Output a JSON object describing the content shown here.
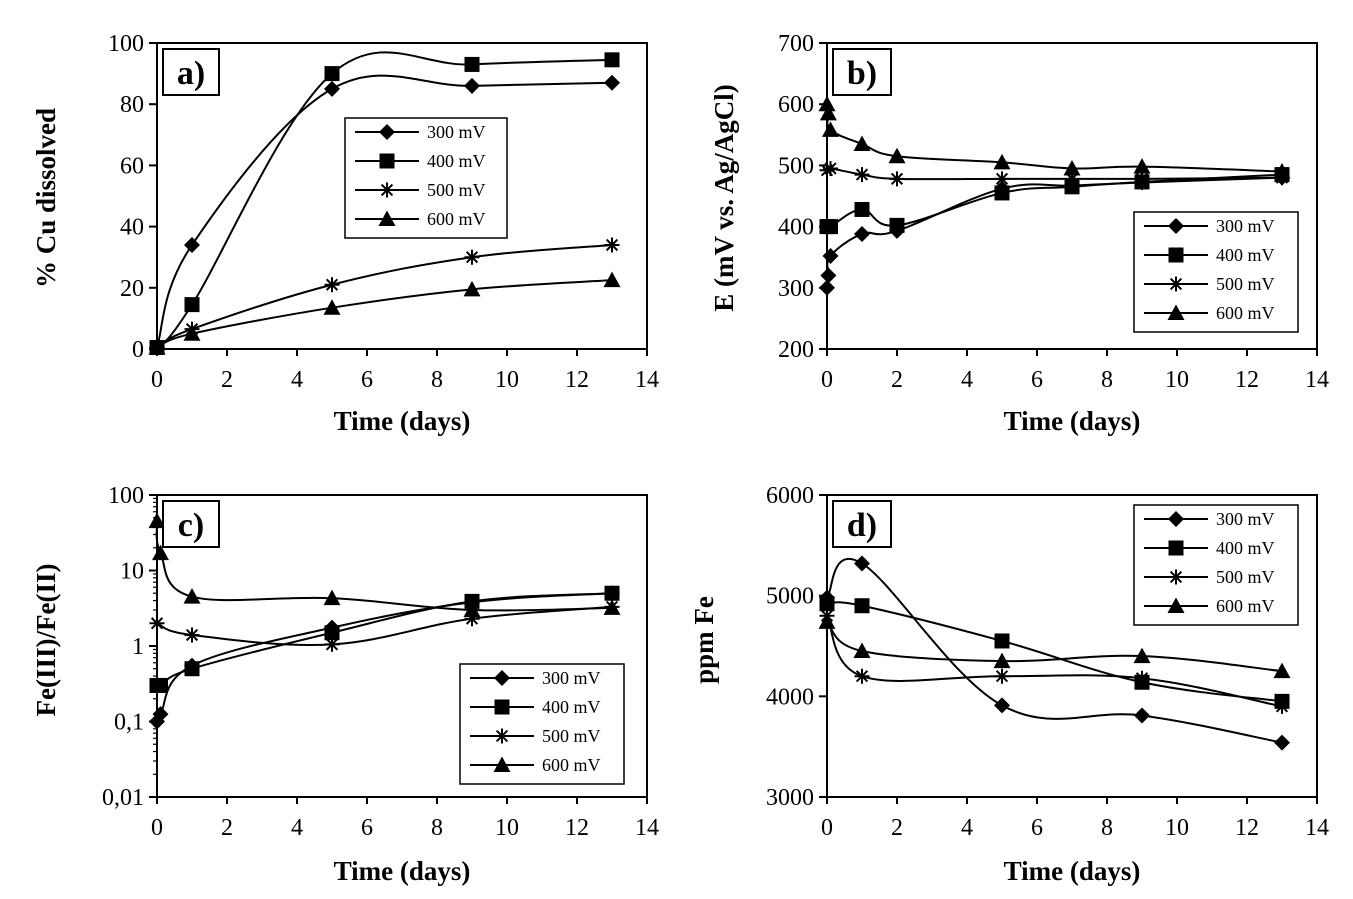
{
  "chart_data": [
    {
      "id": "a",
      "type": "line",
      "panel_label": "a)",
      "xlabel": "Time (days)",
      "ylabel": "% Cu dissolved",
      "scale": "linear",
      "xlim": [
        0,
        14
      ],
      "ylim": [
        0,
        100
      ],
      "xticks": [
        0,
        2,
        4,
        6,
        8,
        10,
        12,
        14
      ],
      "yticks": [
        0,
        20,
        40,
        60,
        80,
        100
      ],
      "xtick_labels": [
        "0",
        "2",
        "4",
        "6",
        "8",
        "10",
        "12",
        "14"
      ],
      "ytick_labels": [
        "0",
        "20",
        "40",
        "60",
        "80",
        "100"
      ],
      "legend_position": "center-right",
      "series": [
        {
          "name": "300 mV",
          "marker": "diamond",
          "x": [
            0,
            1,
            5,
            9,
            13
          ],
          "y": [
            0.5,
            34,
            85,
            86,
            87
          ]
        },
        {
          "name": "400 mV",
          "marker": "square",
          "x": [
            0,
            1,
            5,
            9,
            13
          ],
          "y": [
            0.5,
            14.5,
            90,
            93,
            94.5
          ]
        },
        {
          "name": "500 mV",
          "marker": "star",
          "x": [
            0,
            1,
            5,
            9,
            13
          ],
          "y": [
            0.5,
            6.5,
            21,
            30,
            34
          ]
        },
        {
          "name": "600 mV",
          "marker": "triangle",
          "x": [
            0,
            1,
            5,
            9,
            13
          ],
          "y": [
            0.5,
            5,
            13.5,
            19.5,
            22.5
          ]
        }
      ]
    },
    {
      "id": "b",
      "type": "line",
      "panel_label": "b)",
      "xlabel": "Time (days)",
      "ylabel": "E (mV vs. Ag/AgCl)",
      "scale": "linear",
      "xlim": [
        0,
        14
      ],
      "ylim": [
        200,
        700
      ],
      "xticks": [
        0,
        2,
        4,
        6,
        8,
        10,
        12,
        14
      ],
      "yticks": [
        200,
        300,
        400,
        500,
        600,
        700
      ],
      "xtick_labels": [
        "0",
        "2",
        "4",
        "6",
        "8",
        "10",
        "12",
        "14"
      ],
      "ytick_labels": [
        "200",
        "300",
        "400",
        "500",
        "600",
        "700"
      ],
      "legend_position": "bottom-right",
      "series": [
        {
          "name": "300 mV",
          "marker": "diamond",
          "x": [
            0,
            0.04,
            0.1,
            1,
            2,
            5,
            7,
            9,
            13
          ],
          "y": [
            300,
            320,
            352,
            388,
            393,
            462,
            467,
            472,
            480
          ]
        },
        {
          "name": "400 mV",
          "marker": "square",
          "x": [
            0,
            0.1,
            1,
            2,
            5,
            7,
            9,
            13
          ],
          "y": [
            400,
            400,
            428,
            402,
            455,
            465,
            473,
            485
          ]
        },
        {
          "name": "500 mV",
          "marker": "star",
          "x": [
            0,
            0.1,
            1,
            2,
            5,
            7,
            9,
            13
          ],
          "y": [
            492,
            495,
            485,
            478,
            478,
            478,
            478,
            480
          ]
        },
        {
          "name": "600 mV",
          "marker": "triangle",
          "x": [
            0,
            0.04,
            0.1,
            1,
            2,
            5,
            7,
            9,
            13
          ],
          "y": [
            600,
            585,
            558,
            535,
            515,
            505,
            495,
            498,
            490
          ]
        }
      ]
    },
    {
      "id": "c",
      "type": "line",
      "panel_label": "c)",
      "xlabel": "Time (days)",
      "ylabel": "Fe(III)/Fe(II)",
      "scale": "log",
      "xlim": [
        0,
        14
      ],
      "ylim": [
        0.01,
        100
      ],
      "xticks": [
        0,
        2,
        4,
        6,
        8,
        10,
        12,
        14
      ],
      "yticks": [
        0.01,
        0.1,
        1,
        10,
        100
      ],
      "xtick_labels": [
        "0",
        "2",
        "4",
        "6",
        "8",
        "10",
        "12",
        "14"
      ],
      "ytick_labels": [
        "0,01",
        "0,1",
        "1",
        "10",
        "100"
      ],
      "legend_position": "bottom-right",
      "series": [
        {
          "name": "300 mV",
          "marker": "diamond",
          "x": [
            0,
            0.1,
            1,
            5,
            9,
            13
          ],
          "y": [
            0.1,
            0.125,
            0.55,
            1.75,
            3.8,
            5.0
          ]
        },
        {
          "name": "400 mV",
          "marker": "square",
          "x": [
            0,
            0.1,
            1,
            5,
            9,
            13
          ],
          "y": [
            0.3,
            0.3,
            0.5,
            1.5,
            3.9,
            5.0
          ]
        },
        {
          "name": "500 mV",
          "marker": "star",
          "x": [
            0,
            1,
            5,
            9,
            13
          ],
          "y": [
            2.0,
            1.4,
            1.05,
            2.3,
            3.3
          ]
        },
        {
          "name": "600 mV",
          "marker": "triangle",
          "x": [
            0,
            0.1,
            1,
            5,
            9,
            13
          ],
          "y": [
            45,
            17,
            4.5,
            4.3,
            3.0,
            3.2
          ]
        }
      ]
    },
    {
      "id": "d",
      "type": "line",
      "panel_label": "d)",
      "xlabel": "Time (days)",
      "ylabel": "ppm Fe",
      "scale": "linear",
      "xlim": [
        0,
        14
      ],
      "ylim": [
        3000,
        6000
      ],
      "xticks": [
        0,
        2,
        4,
        6,
        8,
        10,
        12,
        14
      ],
      "yticks": [
        3000,
        4000,
        5000,
        6000
      ],
      "xtick_labels": [
        "0",
        "2",
        "4",
        "6",
        "8",
        "10",
        "12",
        "14"
      ],
      "ytick_labels": [
        "3000",
        "4000",
        "5000",
        "6000"
      ],
      "legend_position": "top-right",
      "series": [
        {
          "name": "300 mV",
          "marker": "diamond",
          "x": [
            0,
            1,
            5,
            9,
            13
          ],
          "y": [
            4980,
            5320,
            3910,
            3810,
            3540
          ]
        },
        {
          "name": "400 mV",
          "marker": "square",
          "x": [
            0,
            1,
            5,
            9,
            13
          ],
          "y": [
            4920,
            4900,
            4550,
            4140,
            3950
          ]
        },
        {
          "name": "500 mV",
          "marker": "star",
          "x": [
            0,
            1,
            5,
            9,
            13
          ],
          "y": [
            4800,
            4200,
            4200,
            4180,
            3900
          ]
        },
        {
          "name": "600 mV",
          "marker": "triangle",
          "x": [
            0,
            1,
            5,
            9,
            13
          ],
          "y": [
            4740,
            4450,
            4350,
            4400,
            4250
          ]
        }
      ]
    }
  ]
}
